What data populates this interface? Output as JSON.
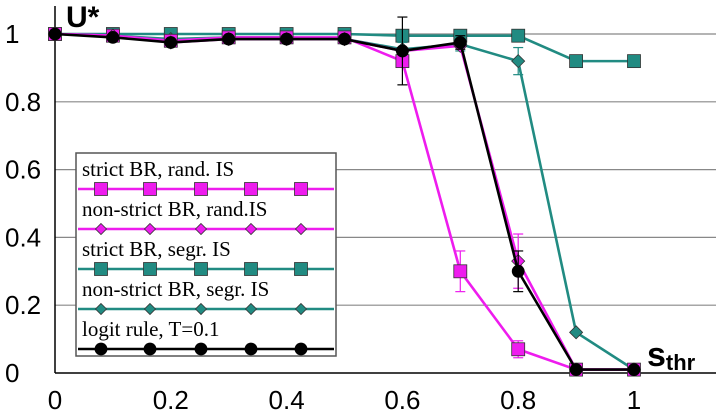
{
  "chart_data": {
    "type": "line",
    "xlabel": {
      "main": "s",
      "sub": "thr"
    },
    "ylabel": "U*",
    "xlim": [
      0,
      1
    ],
    "ylim": [
      0,
      1
    ],
    "grid": "horizontal",
    "legend_placement": "lower-left",
    "x_ticks": [
      "0",
      "0.2",
      "0.4",
      "0.6",
      "0.8",
      "1"
    ],
    "y_ticks": [
      "0",
      "0.2",
      "0.4",
      "0.6",
      "0.8",
      "1"
    ],
    "series": [
      {
        "name": "strict BR, segr. IS",
        "color": "#218b82",
        "marker": "square",
        "x": [
          0,
          0.1,
          0.2,
          0.3,
          0.4,
          0.5,
          0.6,
          0.7,
          0.8,
          0.9,
          1.0
        ],
        "y": [
          1.0,
          1.0,
          1.0,
          1.0,
          1.0,
          1.0,
          0.995,
          0.995,
          0.995,
          0.92,
          0.92
        ],
        "err": [
          0,
          0,
          0,
          0,
          0,
          0,
          0,
          0,
          0,
          0,
          0
        ]
      },
      {
        "name": "non-strict BR, segr. IS",
        "color": "#218b82",
        "marker": "diamond",
        "x": [
          0,
          0.1,
          0.2,
          0.3,
          0.4,
          0.5,
          0.6,
          0.7,
          0.8,
          0.9,
          1.0
        ],
        "y": [
          1.0,
          0.995,
          0.985,
          0.99,
          0.99,
          0.985,
          0.955,
          0.97,
          0.92,
          0.12,
          0.01
        ],
        "err": [
          0,
          0,
          0,
          0,
          0,
          0,
          0.02,
          0.02,
          0.04,
          0,
          0
        ]
      },
      {
        "name": "strict BR, rand. IS",
        "color": "#ee1cee",
        "marker": "square",
        "x": [
          0,
          0.1,
          0.2,
          0.3,
          0.4,
          0.5,
          0.6,
          0.7,
          0.8,
          0.9,
          1.0
        ],
        "y": [
          1.0,
          0.995,
          0.98,
          0.99,
          0.99,
          0.99,
          0.92,
          0.3,
          0.07,
          0.01,
          0.01
        ],
        "err": [
          0,
          0,
          0,
          0,
          0,
          0,
          0,
          0.06,
          0.025,
          0,
          0
        ]
      },
      {
        "name": "non-strict BR, rand.IS",
        "color": "#ee1cee",
        "marker": "diamond",
        "x": [
          0,
          0.1,
          0.2,
          0.3,
          0.4,
          0.5,
          0.6,
          0.7,
          0.8,
          0.9,
          1.0
        ],
        "y": [
          1.0,
          0.995,
          0.975,
          0.985,
          0.985,
          0.985,
          0.95,
          0.965,
          0.33,
          0.01,
          0.01
        ],
        "err": [
          0,
          0,
          0,
          0,
          0,
          0,
          0,
          0,
          0.08,
          0,
          0
        ]
      },
      {
        "name": "logit rule, T=0.1",
        "color": "#000000",
        "marker": "circle",
        "x": [
          0,
          0.1,
          0.2,
          0.3,
          0.4,
          0.5,
          0.6,
          0.7,
          0.8,
          0.9,
          1.0
        ],
        "y": [
          1.0,
          0.99,
          0.975,
          0.985,
          0.985,
          0.985,
          0.95,
          0.975,
          0.3,
          0.01,
          0.01
        ],
        "err": [
          0,
          0,
          0,
          0,
          0,
          0,
          0.1,
          0.02,
          0.06,
          0,
          0
        ]
      }
    ],
    "legend_order": [
      2,
      3,
      0,
      1,
      4
    ]
  }
}
